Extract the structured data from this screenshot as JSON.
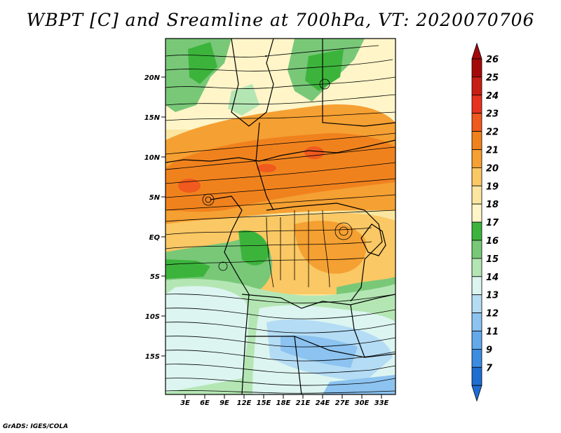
{
  "title": "WBPT [C] and Sreamline at 700hPa, VT: 2020070706",
  "credit": "GrADS: IGES/COLA",
  "lat_labels": [
    "20N",
    "15N",
    "10N",
    "5N",
    "EQ",
    "5S",
    "10S",
    "15S"
  ],
  "lon_labels": [
    "3E",
    "6E",
    "9E",
    "12E",
    "15E",
    "18E",
    "21E",
    "24E",
    "27E",
    "30E",
    "33E"
  ],
  "colorbar": {
    "labels": [
      "26",
      "25",
      "24",
      "23",
      "22",
      "21",
      "20",
      "19",
      "18",
      "17",
      "16",
      "15",
      "14",
      "13",
      "12",
      "11",
      "9",
      "7"
    ],
    "colors": [
      "#a50a0a",
      "#c81e14",
      "#e6321e",
      "#f05a1e",
      "#f0821e",
      "#f5a032",
      "#fac864",
      "#fae6a0",
      "#fff5c8",
      "#3cb43c",
      "#78c878",
      "#b4e6b4",
      "#dcf5f0",
      "#b4dcf5",
      "#8cc3f0",
      "#64aaeb",
      "#3c8ce1",
      "#1e6ed2"
    ],
    "top_arrow_color": "#a50a0a",
    "bottom_arrow_color": "#1e6ed2"
  }
}
